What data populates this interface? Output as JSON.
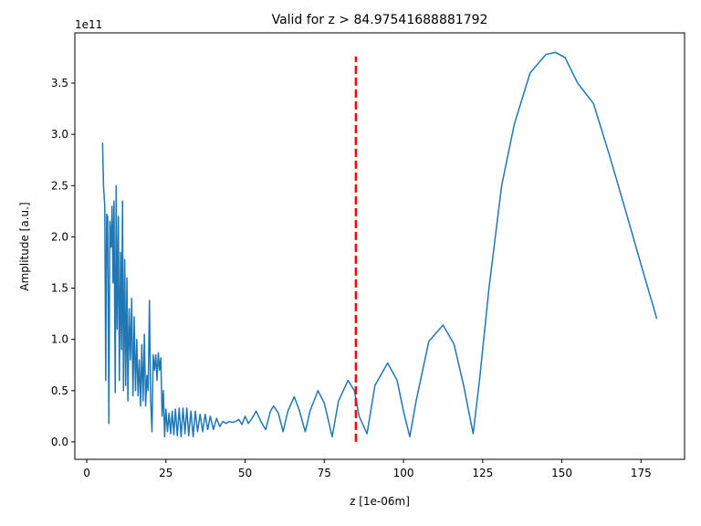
{
  "chart_data": {
    "type": "line",
    "title": "Valid for z > 84.97541688881792",
    "xlabel": "z [1e-06m]",
    "ylabel": "Amplitude [a.u.]",
    "offset_text": "1e11",
    "xlim": [
      -3.75,
      188.75
    ],
    "ylim": [
      -0.17,
      3.99
    ],
    "xticks": [
      0,
      25,
      50,
      75,
      100,
      125,
      150,
      175
    ],
    "yticks": [
      {
        "value": 0,
        "label": "0.0"
      },
      0.5,
      {
        "value": 1,
        "label": "1.0"
      },
      1.5,
      {
        "value": 2,
        "label": "2.0"
      },
      2.5,
      {
        "value": 3,
        "label": "3.0"
      },
      3.5
    ],
    "x": [
      5,
      5.3,
      5.7,
      6,
      6.3,
      6.6,
      7,
      7.3,
      7.7,
      8,
      8.3,
      8.6,
      9,
      9.3,
      9.6,
      10,
      10.3,
      10.7,
      11,
      11.3,
      11.6,
      12,
      12.3,
      12.7,
      13,
      13.4,
      13.8,
      14.2,
      14.6,
      15,
      15.4,
      15.8,
      16.2,
      16.6,
      17,
      17.4,
      17.8,
      18.2,
      18.6,
      19,
      19.4,
      19.8,
      20.2,
      20.6,
      21,
      21.4,
      21.8,
      22.2,
      22.6,
      23,
      23.4,
      23.8,
      24.2,
      24.6,
      25,
      25.5,
      26,
      26.5,
      27,
      27.5,
      28,
      28.6,
      29.2,
      29.8,
      30.4,
      31,
      31.6,
      32.2,
      32.9,
      33.6,
      34.3,
      35,
      35.8,
      36.6,
      37.4,
      38.2,
      39,
      40,
      41,
      42,
      43,
      44,
      45,
      46,
      47,
      48,
      49,
      50,
      51,
      52,
      53.5,
      55,
      56.5,
      58,
      59,
      60.5,
      62,
      63.5,
      65.5,
      67,
      69,
      70.5,
      73,
      75,
      77.5,
      79.5,
      82.5,
      84.5,
      86,
      88.5,
      91,
      95,
      98,
      100,
      102,
      104,
      108,
      112.5,
      116,
      119,
      122,
      124,
      127,
      131,
      135,
      140,
      145,
      148,
      151,
      155,
      160,
      165,
      170,
      175,
      180
    ],
    "series": [
      {
        "color": "#1f77b4",
        "values": [
          2.92,
          2.5,
          2.3,
          0.6,
          2.22,
          2.2,
          0.18,
          2.15,
          1.9,
          2.3,
          1.55,
          2.35,
          0.48,
          2.5,
          1.1,
          2.2,
          0.6,
          1.85,
          0.9,
          2.35,
          0.5,
          1.78,
          0.55,
          1.6,
          0.4,
          1.3,
          0.8,
          1.4,
          0.45,
          1.22,
          0.5,
          1.0,
          0.45,
          0.8,
          0.35,
          0.95,
          0.4,
          1.05,
          0.35,
          0.65,
          0.5,
          1.38,
          0.4,
          0.1,
          0.85,
          0.7,
          0.85,
          0.6,
          0.87,
          0.7,
          0.82,
          0.25,
          0.5,
          0.05,
          0.32,
          0.1,
          0.28,
          0.08,
          0.3,
          0.07,
          0.32,
          0.06,
          0.33,
          0.05,
          0.33,
          0.08,
          0.33,
          0.06,
          0.3,
          0.05,
          0.3,
          0.1,
          0.27,
          0.1,
          0.27,
          0.12,
          0.25,
          0.12,
          0.23,
          0.15,
          0.2,
          0.18,
          0.2,
          0.19,
          0.2,
          0.22,
          0.17,
          0.25,
          0.18,
          0.22,
          0.3,
          0.2,
          0.12,
          0.3,
          0.35,
          0.28,
          0.1,
          0.3,
          0.44,
          0.32,
          0.1,
          0.3,
          0.5,
          0.38,
          0.05,
          0.4,
          0.6,
          0.5,
          0.25,
          0.08,
          0.55,
          0.77,
          0.6,
          0.3,
          0.05,
          0.4,
          0.98,
          1.14,
          0.95,
          0.55,
          0.08,
          0.6,
          1.5,
          2.5,
          3.1,
          3.6,
          3.78,
          3.8,
          3.75,
          3.5,
          3.3,
          2.8,
          2.27,
          1.73,
          1.2
        ]
      }
    ],
    "vline": {
      "x": 84.97541688881792,
      "ymin": 0,
      "ymax": 3.76,
      "color": "#ff0000"
    }
  }
}
